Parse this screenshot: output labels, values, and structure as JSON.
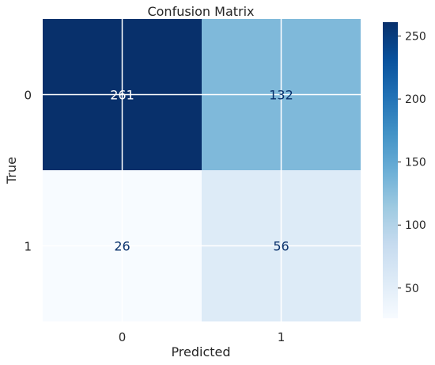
{
  "chart_data": {
    "type": "heatmap",
    "title": "Confusion Matrix",
    "xlabel": "Predicted",
    "ylabel": "True",
    "x_categories": [
      "0",
      "1"
    ],
    "y_categories": [
      "0",
      "1"
    ],
    "matrix": [
      [
        261,
        132
      ],
      [
        26,
        56
      ]
    ],
    "colormap": "Blues",
    "colorbar": {
      "range": [
        26,
        261
      ],
      "ticks": [
        50,
        100,
        150,
        200,
        250
      ],
      "tick_labels": [
        "50",
        "100",
        "150",
        "200",
        "250"
      ]
    },
    "grid": true,
    "colors": {
      "low": "#f7fbff",
      "high": "#08306b",
      "text_on_dark": "#ffffff",
      "text_on_light": "#08306b"
    }
  }
}
